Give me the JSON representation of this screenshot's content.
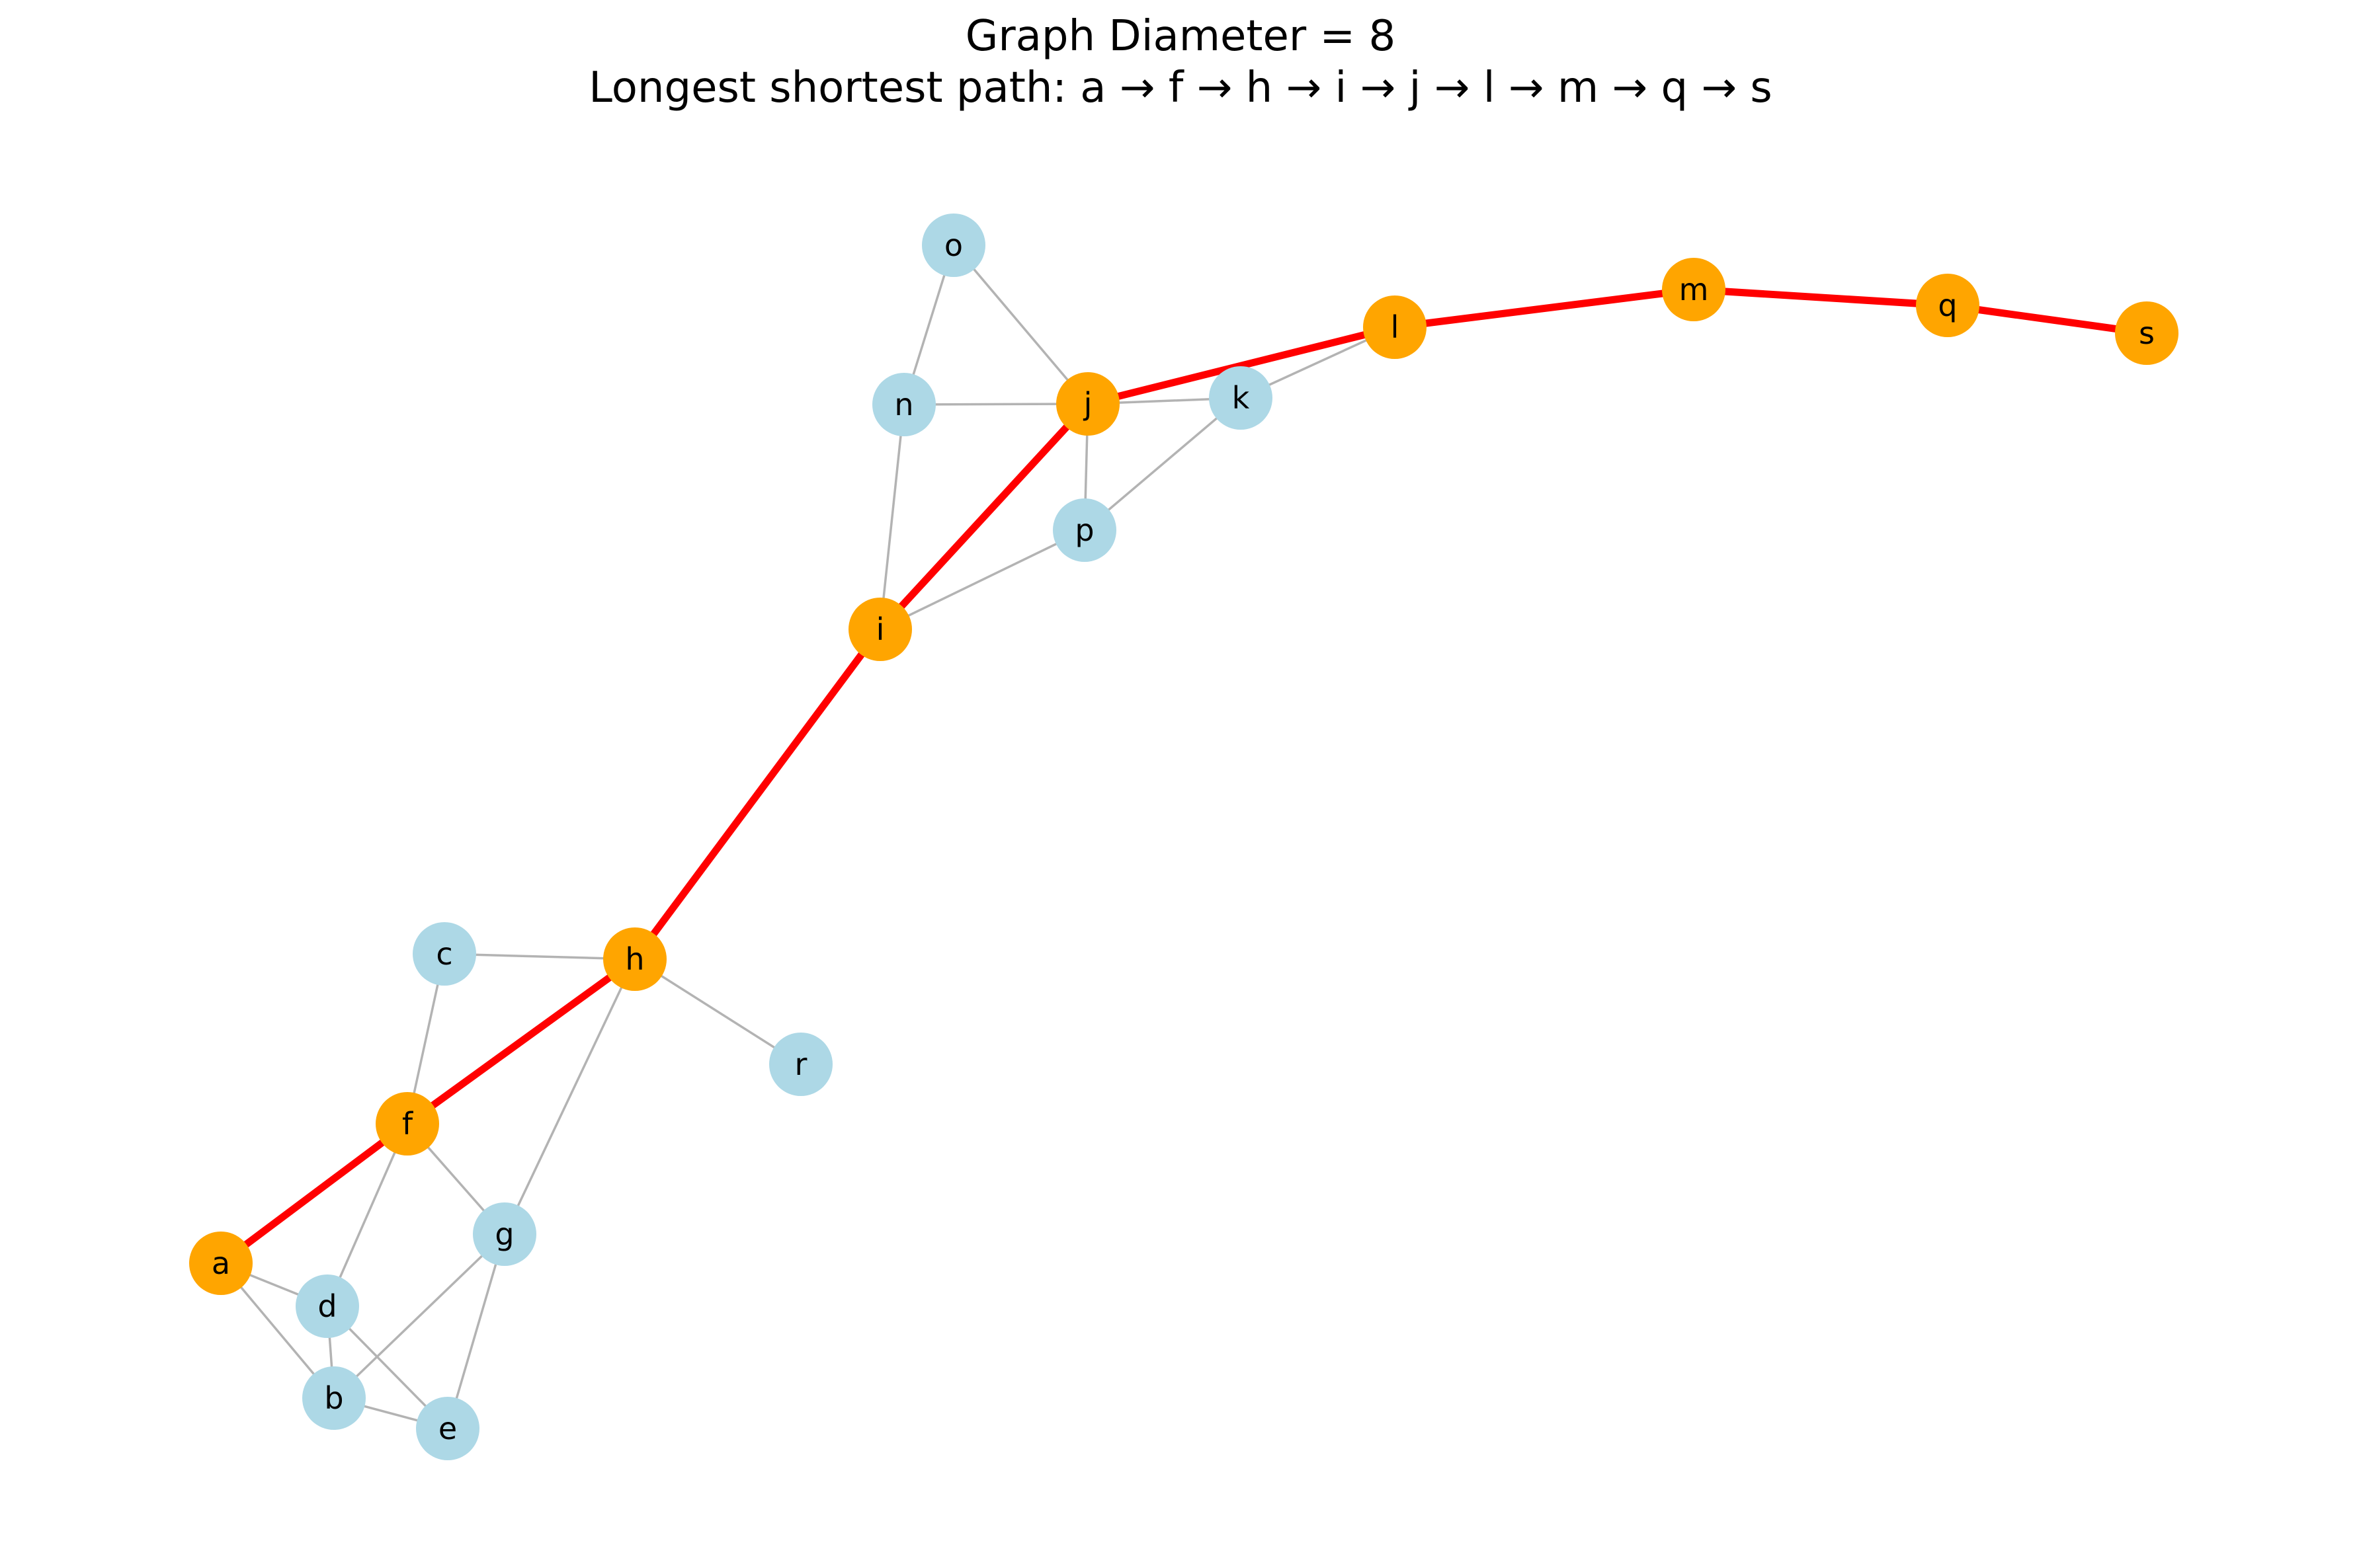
{
  "title": {
    "line1": "Graph Diameter = 8",
    "line2": "Longest shortest path: a → f → h → i → j → l → m → q → s"
  },
  "colors": {
    "path_node": "#ffa500",
    "other_node": "#add8e6",
    "path_edge": "#ff0000",
    "other_edge": "#b3b3b3"
  },
  "graph": {
    "diameter": 8,
    "path": [
      "a",
      "f",
      "h",
      "i",
      "j",
      "l",
      "m",
      "q",
      "s"
    ],
    "nodes": [
      "a",
      "b",
      "c",
      "d",
      "e",
      "f",
      "g",
      "h",
      "i",
      "j",
      "k",
      "l",
      "m",
      "n",
      "o",
      "p",
      "q",
      "r",
      "s"
    ],
    "edges": [
      [
        "a",
        "d"
      ],
      [
        "a",
        "b"
      ],
      [
        "d",
        "b"
      ],
      [
        "d",
        "e"
      ],
      [
        "b",
        "e"
      ],
      [
        "b",
        "g"
      ],
      [
        "g",
        "e"
      ],
      [
        "f",
        "d"
      ],
      [
        "f",
        "g"
      ],
      [
        "f",
        "c"
      ],
      [
        "c",
        "h"
      ],
      [
        "h",
        "g"
      ],
      [
        "h",
        "r"
      ],
      [
        "i",
        "n"
      ],
      [
        "i",
        "p"
      ],
      [
        "n",
        "o"
      ],
      [
        "n",
        "j"
      ],
      [
        "o",
        "j"
      ],
      [
        "j",
        "k"
      ],
      [
        "j",
        "p"
      ],
      [
        "p",
        "k"
      ],
      [
        "k",
        "l"
      ],
      [
        "a",
        "f"
      ],
      [
        "f",
        "h"
      ],
      [
        "h",
        "i"
      ],
      [
        "i",
        "j"
      ],
      [
        "j",
        "l"
      ],
      [
        "l",
        "m"
      ],
      [
        "m",
        "q"
      ],
      [
        "q",
        "s"
      ]
    ]
  }
}
